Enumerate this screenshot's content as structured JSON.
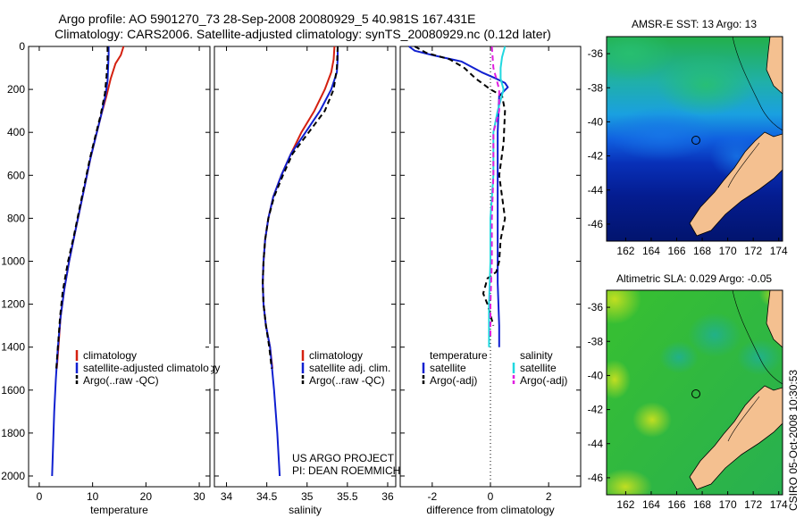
{
  "figure_title": {
    "line1": "Argo profile: AO 5901270_73 28-Sep-2008 20080929_5 40.981S 167.431E",
    "line2": "Climatology: CARS2006. Satellite-adjusted climatology: synTS_20080929.nc (0.12d later)"
  },
  "credit": {
    "line1": "US ARGO PROJECT",
    "line2": "PI: DEAN ROEMMICH"
  },
  "stamp": "CSIRO 05-Oct-2008 10:30:53",
  "colors": {
    "climatology": "#d42010",
    "satellite": "#1020d0",
    "argo": "#000000",
    "salinity_satellite": "#20d8e0",
    "salinity_argo": "#e020e0",
    "land": "#f4c090",
    "marker": "#000000"
  },
  "chart_data": [
    {
      "type": "line",
      "id": "temperature",
      "xlabel": "temperature",
      "xlim": [
        -2,
        32
      ],
      "ylim": [
        2050,
        0
      ],
      "xticks": [
        0,
        10,
        20,
        30
      ],
      "yticks": [
        0,
        200,
        400,
        600,
        800,
        1000,
        1200,
        1400,
        1600,
        1800,
        2000
      ],
      "series": [
        {
          "name": "climatology",
          "color": "#d42010",
          "dash": "",
          "points": [
            [
              15.8,
              0
            ],
            [
              15.3,
              40
            ],
            [
              14.3,
              80
            ],
            [
              13.4,
              150
            ],
            [
              12.6,
              230
            ],
            [
              11.6,
              320
            ],
            [
              10.6,
              420
            ],
            [
              9.6,
              520
            ],
            [
              8.6,
              640
            ],
            [
              7.6,
              760
            ],
            [
              6.6,
              880
            ],
            [
              5.6,
              1000
            ],
            [
              4.7,
              1130
            ],
            [
              4.0,
              1260
            ],
            [
              3.6,
              1400
            ],
            [
              3.3,
              1500
            ]
          ]
        },
        {
          "name": "satellite-adjusted climatology",
          "color": "#1020d0",
          "dash": "",
          "points": [
            [
              13.0,
              0
            ],
            [
              13.0,
              40
            ],
            [
              12.9,
              100
            ],
            [
              12.8,
              160
            ],
            [
              12.4,
              230
            ],
            [
              11.6,
              320
            ],
            [
              10.6,
              420
            ],
            [
              9.6,
              520
            ],
            [
              8.6,
              640
            ],
            [
              7.6,
              760
            ],
            [
              6.6,
              880
            ],
            [
              5.6,
              1000
            ],
            [
              4.7,
              1130
            ],
            [
              4.0,
              1260
            ],
            [
              3.5,
              1400
            ],
            [
              3.1,
              1550
            ],
            [
              2.8,
              1700
            ],
            [
              2.6,
              1850
            ],
            [
              2.4,
              2000
            ]
          ]
        },
        {
          "name": "Argo(..raw -QC)",
          "color": "#000000",
          "dash": "6,4",
          "points": [
            [
              12.8,
              0
            ],
            [
              12.8,
              60
            ],
            [
              12.6,
              140
            ],
            [
              12.3,
              220
            ],
            [
              11.5,
              320
            ],
            [
              10.5,
              420
            ],
            [
              9.5,
              520
            ],
            [
              8.5,
              640
            ],
            [
              7.5,
              760
            ],
            [
              6.5,
              880
            ],
            [
              5.4,
              1000
            ],
            [
              4.4,
              1140
            ],
            [
              3.9,
              1260
            ],
            [
              3.5,
              1400
            ],
            [
              3.2,
              1500
            ]
          ]
        }
      ],
      "legend": {
        "position": "bottom-right",
        "entries": [
          "climatology",
          "satellite-adjusted climatology",
          "Argo(..raw -QC)"
        ]
      }
    },
    {
      "type": "line",
      "id": "salinity",
      "xlabel": "salinity",
      "xlim": [
        33.85,
        36.1
      ],
      "ylim": [
        2050,
        0
      ],
      "xticks": [
        34,
        34.5,
        35,
        35.5,
        36
      ],
      "xticklabels": [
        "34",
        "34.5",
        "35",
        "35.5",
        "36"
      ],
      "series": [
        {
          "name": "climatology",
          "color": "#d42010",
          "dash": "",
          "points": [
            [
              35.34,
              0
            ],
            [
              35.33,
              60
            ],
            [
              35.3,
              120
            ],
            [
              35.22,
              200
            ],
            [
              35.09,
              300
            ],
            [
              34.93,
              400
            ],
            [
              34.8,
              500
            ],
            [
              34.68,
              600
            ],
            [
              34.58,
              700
            ],
            [
              34.52,
              800
            ],
            [
              34.48,
              900
            ],
            [
              34.46,
              1000
            ],
            [
              34.45,
              1100
            ],
            [
              34.46,
              1200
            ],
            [
              34.49,
              1300
            ],
            [
              34.54,
              1400
            ],
            [
              34.57,
              1500
            ]
          ]
        },
        {
          "name": "satellite adj. clim.",
          "color": "#1020d0",
          "dash": "",
          "points": [
            [
              35.38,
              0
            ],
            [
              35.38,
              60
            ],
            [
              35.37,
              120
            ],
            [
              35.3,
              200
            ],
            [
              35.16,
              300
            ],
            [
              34.98,
              400
            ],
            [
              34.8,
              500
            ],
            [
              34.68,
              600
            ],
            [
              34.58,
              700
            ],
            [
              34.52,
              800
            ],
            [
              34.48,
              900
            ],
            [
              34.46,
              1000
            ],
            [
              34.45,
              1100
            ],
            [
              34.46,
              1200
            ],
            [
              34.49,
              1300
            ],
            [
              34.54,
              1400
            ],
            [
              34.59,
              1600
            ],
            [
              34.63,
              1800
            ],
            [
              34.66,
              2000
            ]
          ]
        },
        {
          "name": "Argo(..raw -QC)",
          "color": "#000000",
          "dash": "6,4",
          "points": [
            [
              35.38,
              0
            ],
            [
              35.37,
              100
            ],
            [
              35.33,
              200
            ],
            [
              35.22,
              300
            ],
            [
              35.02,
              400
            ],
            [
              34.82,
              500
            ],
            [
              34.7,
              600
            ],
            [
              34.59,
              700
            ],
            [
              34.52,
              800
            ],
            [
              34.48,
              900
            ],
            [
              34.46,
              1000
            ],
            [
              34.45,
              1100
            ],
            [
              34.46,
              1200
            ],
            [
              34.49,
              1300
            ],
            [
              34.53,
              1400
            ],
            [
              34.56,
              1500
            ]
          ]
        }
      ],
      "legend": {
        "position": "bottom-right",
        "entries": [
          "climatology",
          "satellite adj. clim.",
          "Argo(..raw -QC)"
        ]
      }
    },
    {
      "type": "line",
      "id": "difference",
      "xlabel": "difference from climatology",
      "xlim": [
        -3.1,
        3.1
      ],
      "ylim": [
        2050,
        0
      ],
      "xticks": [
        -2,
        0,
        2
      ],
      "series": [
        {
          "name": "temperature satellite",
          "color": "#1020d0",
          "dash": "",
          "points": [
            [
              -2.8,
              0
            ],
            [
              -2.6,
              20
            ],
            [
              -2.0,
              40
            ],
            [
              -1.0,
              70
            ],
            [
              -0.3,
              120
            ],
            [
              0.2,
              150
            ],
            [
              0.5,
              170
            ],
            [
              0.6,
              190
            ],
            [
              0.3,
              230
            ],
            [
              0.25,
              400
            ],
            [
              0.25,
              800
            ],
            [
              0.25,
              1100
            ],
            [
              0.3,
              1300
            ],
            [
              0.3,
              1400
            ]
          ]
        },
        {
          "name": "temperature Argo(-adj)",
          "color": "#000000",
          "dash": "6,4",
          "points": [
            [
              -2.6,
              0
            ],
            [
              -2.2,
              30
            ],
            [
              -1.4,
              60
            ],
            [
              -0.9,
              100
            ],
            [
              -0.5,
              150
            ],
            [
              0.0,
              200
            ],
            [
              0.4,
              230
            ],
            [
              0.5,
              300
            ],
            [
              0.45,
              450
            ],
            [
              0.3,
              600
            ],
            [
              0.5,
              800
            ],
            [
              0.35,
              900
            ],
            [
              0.3,
              1000
            ],
            [
              0.2,
              1050
            ],
            [
              -0.1,
              1080
            ],
            [
              -0.25,
              1150
            ],
            [
              -0.1,
              1200
            ],
            [
              0.1,
              1300
            ]
          ]
        },
        {
          "name": "salinity satellite",
          "color": "#20d8e0",
          "dash": "",
          "points": [
            [
              0.5,
              0
            ],
            [
              0.4,
              50
            ],
            [
              0.35,
              100
            ],
            [
              0.35,
              150
            ],
            [
              0.45,
              200
            ],
            [
              0.25,
              300
            ],
            [
              0.1,
              400
            ],
            [
              0.1,
              600
            ],
            [
              0.0,
              800
            ],
            [
              0.0,
              1000
            ],
            [
              -0.05,
              1200
            ],
            [
              -0.05,
              1400
            ]
          ]
        },
        {
          "name": "salinity Argo(-adj)",
          "color": "#e020e0",
          "dash": "6,4",
          "points": [
            [
              0.05,
              0
            ],
            [
              0.1,
              100
            ],
            [
              0.3,
              200
            ],
            [
              0.3,
              300
            ],
            [
              0.1,
              400
            ],
            [
              0.1,
              600
            ],
            [
              0.05,
              800
            ],
            [
              0.05,
              1000
            ],
            [
              0.0,
              1200
            ],
            [
              0.0,
              1350
            ]
          ]
        }
      ],
      "legend": {
        "position": "bottom-center",
        "col1_title": "temperature",
        "col2_title": "salinity",
        "entries": [
          "satellite",
          "Argo(-adj)",
          "satellite",
          "Argo(-adj)"
        ]
      }
    },
    {
      "type": "heatmap",
      "id": "sst-map",
      "title": "AMSR-E SST: 13 Argo: 13",
      "xlim": [
        160.5,
        174.3
      ],
      "ylim": [
        -47,
        -35
      ],
      "xticks": [
        162,
        164,
        166,
        168,
        170,
        172,
        174
      ],
      "yticks": [
        -36,
        -38,
        -40,
        -42,
        -44,
        -46
      ],
      "argo_position": [
        167.4,
        -41.0
      ]
    },
    {
      "type": "heatmap",
      "id": "sla-map",
      "title": "Altimetric SLA: 0.029 Argo: -0.05",
      "xlim": [
        160.5,
        174.3
      ],
      "ylim": [
        -47,
        -35
      ],
      "xticks": [
        162,
        164,
        166,
        168,
        170,
        172,
        174
      ],
      "yticks": [
        -36,
        -38,
        -40,
        -42,
        -44,
        -46
      ],
      "argo_position": [
        167.4,
        -41.0
      ]
    }
  ]
}
